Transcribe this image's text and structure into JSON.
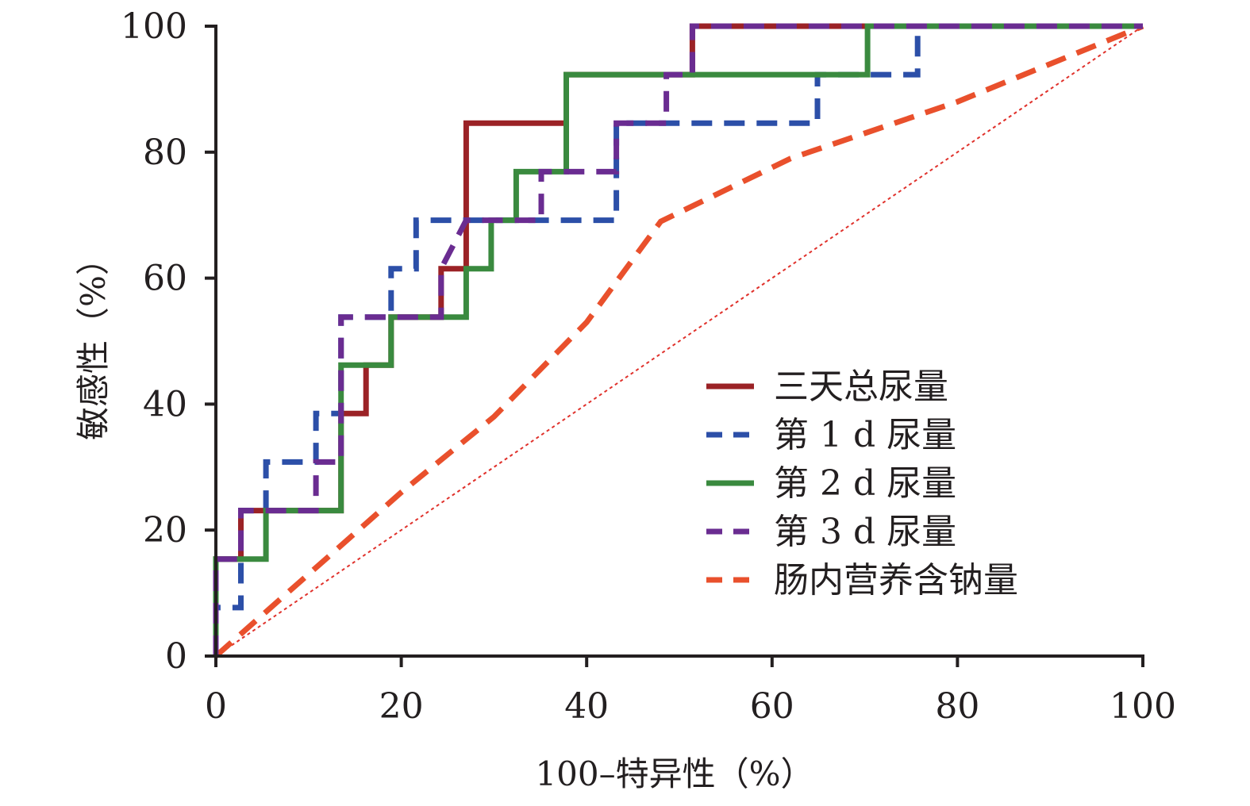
{
  "chart_data": {
    "type": "line",
    "xlabel": "100–特异性（%）",
    "ylabel": "敏感性（%）",
    "xlim": [
      0,
      100
    ],
    "ylim": [
      0,
      100
    ],
    "x_ticks": [
      "0",
      "20",
      "40",
      "60",
      "80",
      "100"
    ],
    "y_ticks": [
      "0",
      "20",
      "40",
      "60",
      "80",
      "100"
    ],
    "legend_position": "bottom-right",
    "reference_line": {
      "x": [
        0,
        100
      ],
      "y": [
        0,
        100
      ],
      "color": "#e0312b",
      "style": "dotted"
    },
    "series": [
      {
        "name": "三天总尿量",
        "color": "#9b2226",
        "dash": "solid",
        "x": [
          0,
          0,
          2.7,
          2.7,
          5.4,
          5.4,
          13.5,
          13.5,
          16.2,
          16.2,
          18.9,
          18.9,
          24.3,
          24.3,
          27,
          27,
          37.8,
          37.8,
          51.4,
          51.4,
          100
        ],
        "y": [
          0,
          15.4,
          15.4,
          23.1,
          23.1,
          23.1,
          23.1,
          38.5,
          38.5,
          46.2,
          46.2,
          53.8,
          53.8,
          61.5,
          61.5,
          84.6,
          84.6,
          92.3,
          92.3,
          100,
          100
        ]
      },
      {
        "name": "第 1 d 尿量",
        "color": "#2c4fa8",
        "dash": "dashed",
        "x": [
          0,
          0,
          2.7,
          2.7,
          5.4,
          5.4,
          10.8,
          10.8,
          13.5,
          13.5,
          18.9,
          18.9,
          21.6,
          21.6,
          32.4,
          43.2,
          43.2,
          64.9,
          64.9,
          75.7,
          75.7,
          100
        ],
        "y": [
          0,
          7.7,
          7.7,
          23.1,
          23.1,
          30.8,
          30.8,
          38.5,
          38.5,
          53.8,
          53.8,
          61.5,
          61.5,
          69.2,
          69.2,
          69.2,
          84.6,
          84.6,
          92.3,
          92.3,
          100,
          100
        ]
      },
      {
        "name": "第 2 d 尿量",
        "color": "#3a8a3f",
        "dash": "solid",
        "x": [
          0,
          0,
          5.4,
          5.4,
          13.5,
          13.5,
          18.9,
          18.9,
          27,
          27,
          29.7,
          29.7,
          32.4,
          32.4,
          37.8,
          37.8,
          70.3,
          70.3,
          100
        ],
        "y": [
          0,
          15.4,
          15.4,
          23.1,
          23.1,
          46.2,
          46.2,
          53.8,
          53.8,
          61.5,
          61.5,
          69.2,
          69.2,
          76.9,
          76.9,
          92.3,
          92.3,
          100,
          100
        ]
      },
      {
        "name": "第 3 d 尿量",
        "color": "#6a2c91",
        "dash": "dashed",
        "x": [
          0,
          0,
          2.7,
          2.7,
          10.8,
          10.8,
          13.5,
          13.5,
          24.3,
          24.3,
          27,
          35.1,
          35.1,
          43.2,
          43.2,
          48.6,
          48.6,
          51.4,
          51.4,
          100
        ],
        "y": [
          0,
          15.4,
          15.4,
          23.1,
          23.1,
          30.8,
          30.8,
          53.8,
          53.8,
          61.5,
          69.2,
          69.2,
          76.9,
          76.9,
          84.6,
          84.6,
          92.3,
          92.3,
          100,
          100
        ]
      },
      {
        "name": "肠内营养含钠量",
        "color": "#e9502c",
        "dash": "dashed",
        "x": [
          0,
          10,
          20,
          30,
          40,
          48,
          55,
          62,
          70,
          80,
          90,
          100
        ],
        "y": [
          0,
          13,
          26,
          38,
          53,
          69,
          74,
          79,
          83,
          88,
          94,
          100
        ]
      }
    ]
  }
}
